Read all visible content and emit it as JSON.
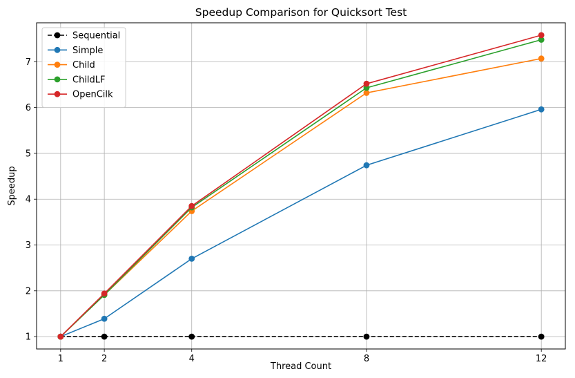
{
  "chart_data": {
    "type": "line",
    "title": "Speedup Comparison for Quicksort Test",
    "xlabel": "Thread Count",
    "ylabel": "Speedup",
    "x": [
      1,
      2,
      4,
      8,
      12
    ],
    "xticks": [
      1,
      2,
      4,
      8,
      12
    ],
    "yticks": [
      1,
      2,
      3,
      4,
      5,
      6,
      7
    ],
    "xlim": [
      0.45,
      12.55
    ],
    "ylim": [
      0.73,
      7.85
    ],
    "grid": true,
    "legend_position": "top-left",
    "series": [
      {
        "name": "Sequential",
        "color": "#000000",
        "line_style": "dashed",
        "marker": "circle",
        "values": [
          1.0,
          1.0,
          1.0,
          1.0,
          1.0
        ]
      },
      {
        "name": "Simple",
        "color": "#1f77b4",
        "line_style": "solid",
        "marker": "circle",
        "values": [
          1.0,
          1.39,
          2.7,
          4.74,
          5.96
        ]
      },
      {
        "name": "Child",
        "color": "#ff7f0e",
        "line_style": "solid",
        "marker": "circle",
        "values": [
          1.0,
          1.91,
          3.74,
          6.32,
          7.07
        ]
      },
      {
        "name": "ChildLF",
        "color": "#2ca02c",
        "line_style": "solid",
        "marker": "circle",
        "values": [
          1.0,
          1.91,
          3.82,
          6.43,
          7.48
        ]
      },
      {
        "name": "OpenCilk",
        "color": "#d62728",
        "line_style": "solid",
        "marker": "circle",
        "values": [
          1.0,
          1.94,
          3.85,
          6.52,
          7.58
        ]
      }
    ]
  }
}
